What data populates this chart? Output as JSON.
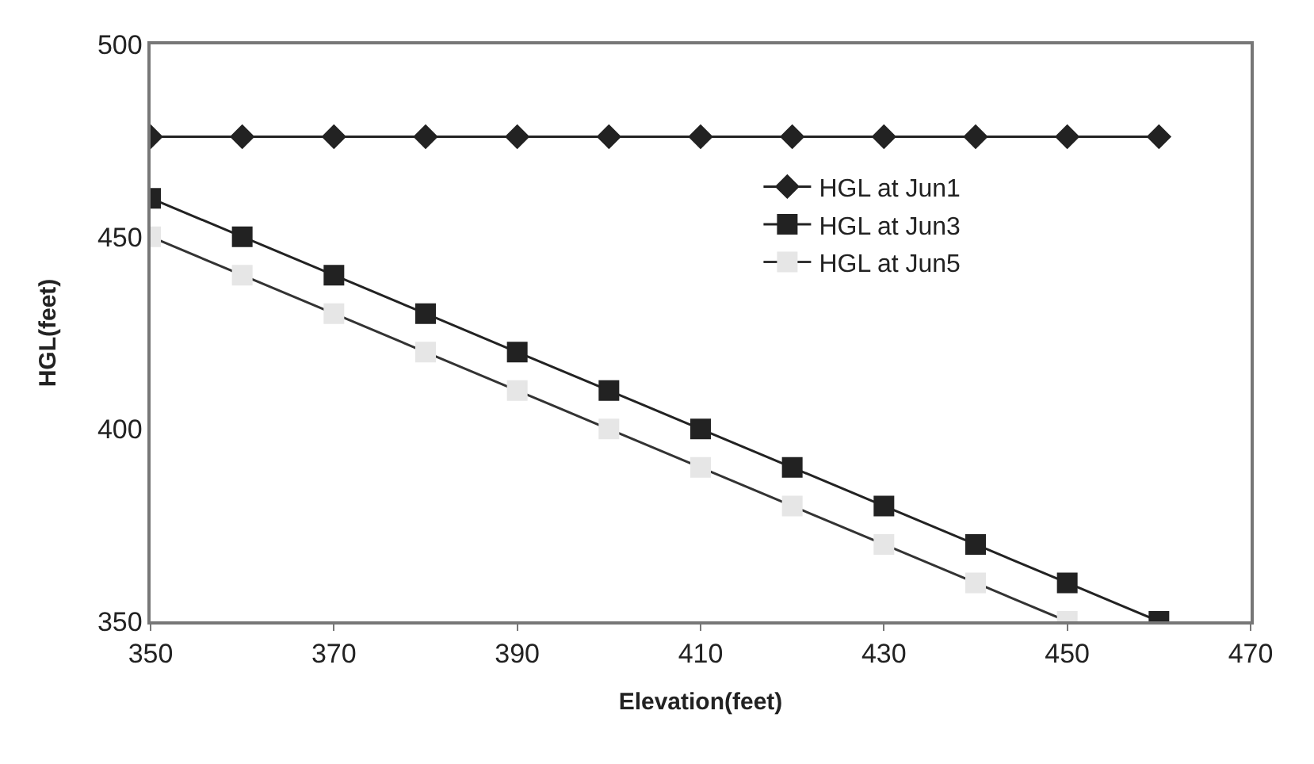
{
  "chart_data": {
    "type": "line",
    "xlabel": "Elevation(feet)",
    "ylabel": "HGL(feet)",
    "xlim": [
      350,
      470
    ],
    "xticks": [
      350,
      370,
      390,
      410,
      430,
      450,
      470
    ],
    "ylim": [
      350,
      500
    ],
    "yticks": [
      350,
      400,
      450,
      500
    ],
    "grid": false,
    "legend": "top right",
    "series": [
      {
        "name": "HGL at Jun1",
        "color": "#222222",
        "marker": "diamond",
        "line_style": "solid",
        "x": [
          350,
          360,
          370,
          380,
          390,
          400,
          410,
          420,
          430,
          440,
          450,
          460
        ],
        "values": [
          476,
          476,
          476,
          476,
          476,
          476,
          476,
          476,
          476,
          476,
          476,
          476
        ]
      },
      {
        "name": "HGL at Jun3",
        "color": "#222222",
        "marker": "square",
        "line_style": "solid",
        "x": [
          350,
          360,
          370,
          380,
          390,
          400,
          410,
          420,
          430,
          440,
          450,
          460
        ],
        "values": [
          460,
          450,
          440,
          430,
          420,
          410,
          400,
          390,
          380,
          370,
          360,
          350
        ]
      },
      {
        "name": "HGL at Jun5",
        "color": "#333333",
        "marker": "square",
        "line_style": "solid",
        "x": [
          350,
          360,
          370,
          380,
          390,
          400,
          410,
          420,
          430,
          440,
          450
        ],
        "values": [
          450,
          440,
          430,
          420,
          410,
          400,
          390,
          380,
          370,
          360,
          350
        ]
      }
    ]
  }
}
